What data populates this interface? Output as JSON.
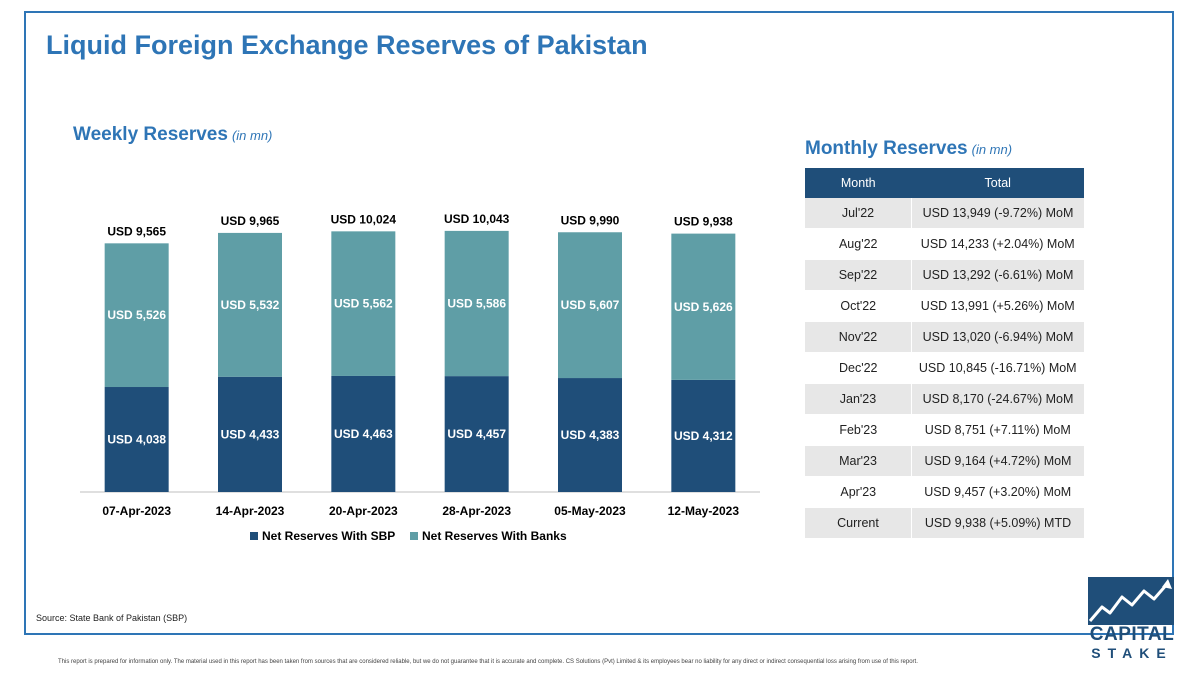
{
  "page": {
    "title": "Liquid Foreign Exchange Reserves of Pakistan",
    "source": "Source: State Bank of Pakistan (SBP)",
    "disclaimer": "This report is prepared for information only. The material used in this report has been taken from sources that are considered reliable, but we do not guarantee that it is accurate and complete. CS Solutions (Pvt) Limited & its employees bear no liability for any direct or indirect consequential loss arising from use of this report.",
    "logo_line1": "CAPITAL",
    "logo_line2": "STAKE"
  },
  "weekly": {
    "title": "Weekly Reserves",
    "unit": "(in mn)"
  },
  "monthly": {
    "title": "Monthly Reserves",
    "unit": "(in mn)",
    "columns": [
      "Month",
      "Total"
    ],
    "rows": [
      {
        "month": "Jul'22",
        "total": "USD 13,949 (-9.72%) MoM"
      },
      {
        "month": "Aug'22",
        "total": "USD 14,233 (+2.04%) MoM"
      },
      {
        "month": "Sep'22",
        "total": "USD 13,292 (-6.61%) MoM"
      },
      {
        "month": "Oct'22",
        "total": "USD 13,991 (+5.26%) MoM"
      },
      {
        "month": "Nov'22",
        "total": "USD 13,020 (-6.94%) MoM"
      },
      {
        "month": "Dec'22",
        "total": "USD 10,845 (-16.71%) MoM"
      },
      {
        "month": "Jan'23",
        "total": "USD 8,170 (-24.67%) MoM"
      },
      {
        "month": "Feb'23",
        "total": "USD 8,751 (+7.11%) MoM"
      },
      {
        "month": "Mar'23",
        "total": "USD 9,164 (+4.72%) MoM"
      },
      {
        "month": "Apr'23",
        "total": "USD 9,457 (+3.20%) MoM"
      },
      {
        "month": "Current",
        "total": "USD 9,938 (+5.09%) MTD"
      }
    ]
  },
  "chart_data": {
    "type": "bar",
    "stacked": true,
    "categories": [
      "07-Apr-2023",
      "14-Apr-2023",
      "20-Apr-2023",
      "28-Apr-2023",
      "05-May-2023",
      "12-May-2023"
    ],
    "series": [
      {
        "name": "Net Reserves With SBP",
        "values": [
          4038,
          4433,
          4463,
          4457,
          4383,
          4312
        ],
        "labels": [
          "USD 4,038",
          "USD 4,433",
          "USD 4,463",
          "USD 4,457",
          "USD 4,383",
          "USD 4,312"
        ],
        "color": "#1f4e79"
      },
      {
        "name": "Net Reserves With Banks",
        "values": [
          5526,
          5532,
          5562,
          5586,
          5607,
          5626
        ],
        "labels": [
          "USD 5,526",
          "USD 5,532",
          "USD 5,562",
          "USD 5,586",
          "USD 5,607",
          "USD 5,626"
        ],
        "color": "#5f9ea6"
      }
    ],
    "totals": [
      9565,
      9965,
      10024,
      10043,
      9990,
      9938
    ],
    "total_labels": [
      "USD 9,565",
      "USD 9,965",
      "USD 10,024",
      "USD 10,043",
      "USD 9,990",
      "USD 9,938"
    ],
    "ylim": [
      0,
      11000
    ],
    "legend_position": "bottom",
    "grid": false
  },
  "colors": {
    "accent": "#2e75b6",
    "header": "#1f4e79",
    "sbp": "#1f4e79",
    "banks": "#5f9ea6"
  }
}
